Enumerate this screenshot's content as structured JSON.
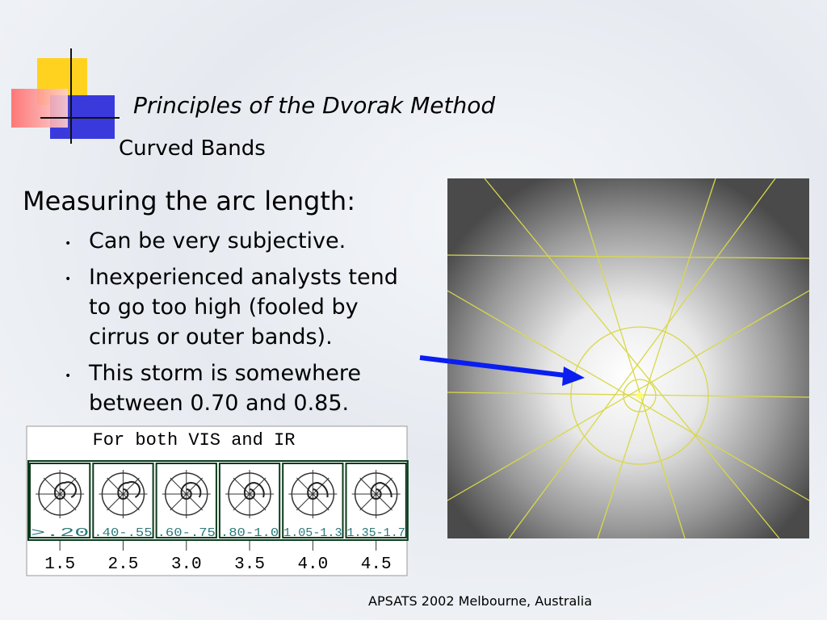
{
  "slide": {
    "title": "Principles of the Dvorak Method",
    "subtitle": "Curved Bands",
    "heading": "Measuring the arc length:",
    "bullets": [
      "Can be very subjective.",
      "Inexperienced analysts tend to go too high (fooled by cirrus or outer bands).",
      "This storm is somewhere between 0.70 and 0.85."
    ],
    "figure": {
      "caption": "For both VIS and IR",
      "ranges": [
        ">.20",
        ".40-.55",
        ".60-.75",
        ".80-1.0",
        "1.05-1.3",
        "1.35-1.7"
      ],
      "numbers": [
        "1.5",
        "2.5",
        "3.0",
        "3.5",
        "4.0",
        "4.5"
      ]
    },
    "footer": "APSATS 2002 Melbourne, Australia"
  }
}
